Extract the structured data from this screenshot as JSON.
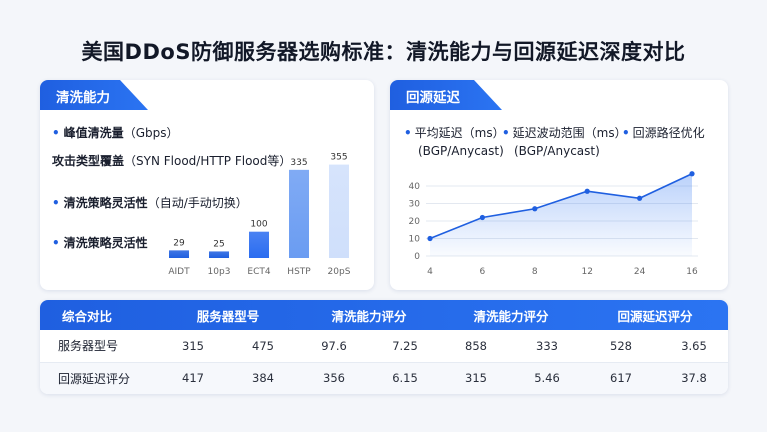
{
  "page": {
    "title": "美国DDoS防御服务器选购标准：清洗能力与回源延迟深度对比"
  },
  "left_panel": {
    "header": "清洗能力",
    "features": [
      {
        "bold": "峰值清洗量",
        "rest": "（Gbps）"
      },
      {
        "bold": "攻击类型覆盖",
        "rest": "（SYN Flood/HTTP Flood等）"
      },
      {
        "bold": "清洗策略灵活性",
        "rest": "（自动/手动切换）"
      },
      {
        "bold": "清洗策略灵活性",
        "rest": ""
      }
    ]
  },
  "right_panel": {
    "header": "回源延迟",
    "legend": [
      {
        "line1": "平均延迟（ms）",
        "line2": "(BGP/Anycast)"
      },
      {
        "line1": "延迟波动范围（ms）",
        "line2": "(BGP/Anycast)"
      },
      {
        "line1": "回源路径优化",
        "line2": ""
      }
    ]
  },
  "chart_data": [
    {
      "type": "bar",
      "categories": [
        "AIDT",
        "10p3",
        "ECT4",
        "HSTP",
        "20pS"
      ],
      "values": [
        29,
        25,
        100,
        335,
        355
      ],
      "title": "",
      "xlabel": "",
      "ylabel": "",
      "ylim": [
        0,
        380
      ],
      "grid": false,
      "colors": [
        "#1f5fe0",
        "#1f5fe0",
        "#2a6cf0",
        "#6a9cf2",
        "#cfdffb"
      ]
    },
    {
      "type": "area",
      "x": [
        "4",
        "6",
        "8",
        "12",
        "24",
        "16"
      ],
      "values": [
        10,
        22,
        27,
        37,
        33,
        47
      ],
      "yticks": [
        0,
        10,
        20,
        30,
        40
      ],
      "ylim": [
        0,
        48
      ],
      "title": "",
      "xlabel": "",
      "ylabel": "",
      "grid": true,
      "line_color": "#1f5fe0"
    }
  ],
  "comparison_table": {
    "header_label": "综合对比",
    "columns": [
      "服务器型号",
      "清洗能力评分",
      "清洗能力评分",
      "回源延迟评分"
    ],
    "rows": [
      {
        "label": "服务器型号",
        "cells": [
          "315",
          "475",
          "97.6",
          "7.25",
          "858",
          "333",
          "528",
          "3.65"
        ]
      },
      {
        "label": "回源延迟评分",
        "cells": [
          "417",
          "384",
          "356",
          "6.15",
          "315",
          "5.46",
          "617",
          "37.8"
        ]
      }
    ]
  },
  "colors": {
    "accent": "#1f5fe0",
    "background": "#f4f6fa"
  }
}
